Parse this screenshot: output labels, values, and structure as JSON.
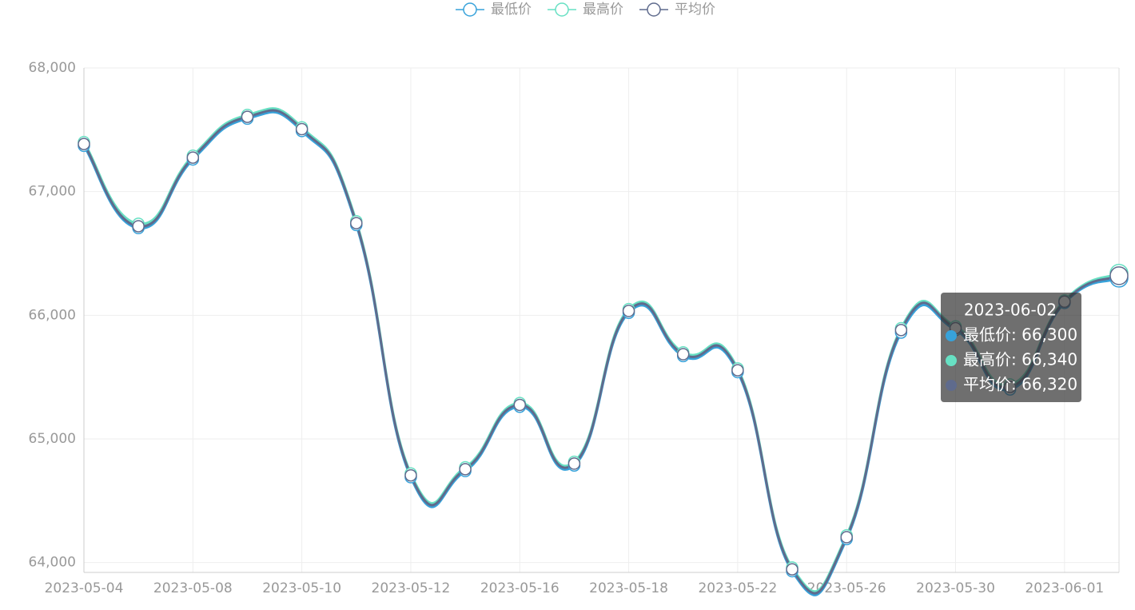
{
  "chart_data": {
    "type": "line",
    "smooth": true,
    "grid": true,
    "x_label_interval": 2,
    "categories": [
      "2023-05-04",
      null,
      "2023-05-08",
      null,
      "2023-05-10",
      null,
      "2023-05-12",
      null,
      "2023-05-16",
      null,
      "2023-05-18",
      null,
      "2023-05-22",
      null,
      "2023-05-26",
      null,
      "2023-05-30",
      null,
      "2023-06-01",
      "2023-06-02"
    ],
    "series": [
      {
        "name": "最低价",
        "color": "#37a2da",
        "values": [
          67370,
          66705,
          67260,
          67590,
          67490,
          66730,
          64690,
          64740,
          65260,
          64785,
          66020,
          65670,
          65540,
          63930,
          64190,
          65860,
          65880,
          65400,
          66100,
          66300
        ]
      },
      {
        "name": "最高价",
        "color": "#67e0c3",
        "values": [
          67400,
          66740,
          67290,
          67620,
          67520,
          66760,
          64720,
          64770,
          65290,
          64815,
          66050,
          65700,
          65570,
          63960,
          64220,
          65895,
          65910,
          65440,
          66120,
          66340
        ]
      },
      {
        "name": "平均价",
        "color": "#5f6b8d",
        "values": [
          67385,
          66720,
          67275,
          67605,
          67505,
          66745,
          64705,
          64755,
          65275,
          64800,
          66035,
          65685,
          65555,
          63945,
          64205,
          65880,
          65895,
          65420,
          66110,
          66320
        ]
      }
    ],
    "ylim": [
      63920,
      68000
    ],
    "yticks": [
      {
        "value": 64000,
        "label": "64,000"
      },
      {
        "value": 65000,
        "label": "65,000"
      },
      {
        "value": 66000,
        "label": "66,000"
      },
      {
        "value": 67000,
        "label": "67,000"
      },
      {
        "value": 68000,
        "label": "68,000"
      }
    ],
    "tooltip": {
      "title": "2023-06-02",
      "rows": [
        "最低价: 66,300",
        "最高价: 66,340",
        "平均价: 66,320"
      ]
    }
  }
}
